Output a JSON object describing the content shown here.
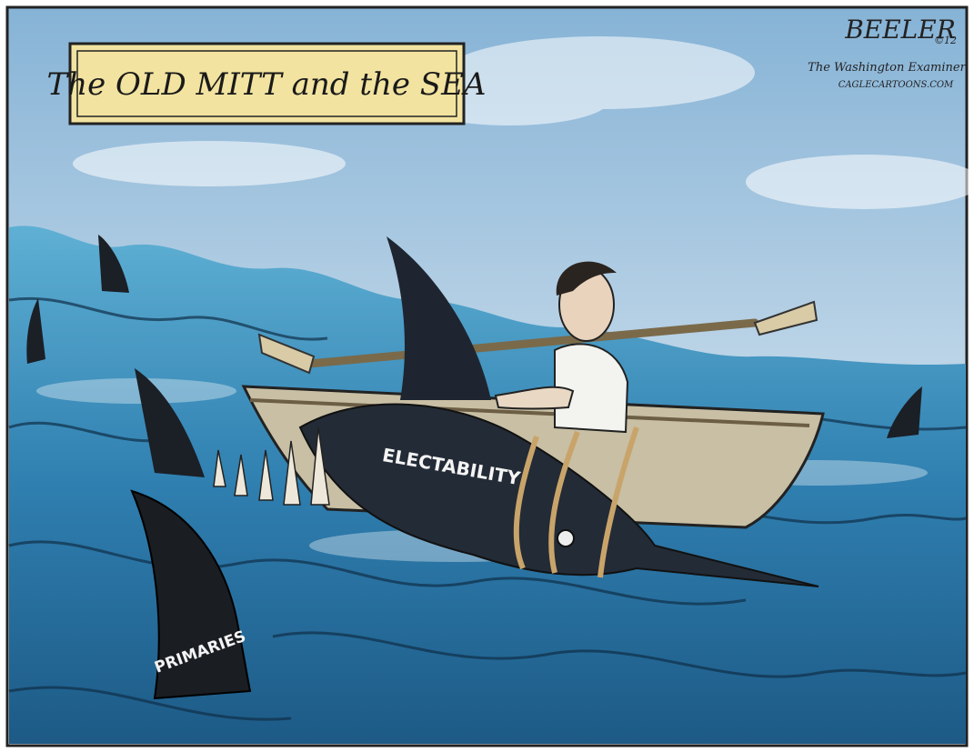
{
  "title": "The OLD MITT and the SEA",
  "credits": {
    "signature": "BEELER",
    "year": "©12",
    "publication": "The Washington Examiner",
    "syndicate": "CAGLECARTOONS.COM"
  },
  "labels": {
    "marlin": "ELECTABILITY",
    "shark_fin": "PRIMARIES"
  }
}
